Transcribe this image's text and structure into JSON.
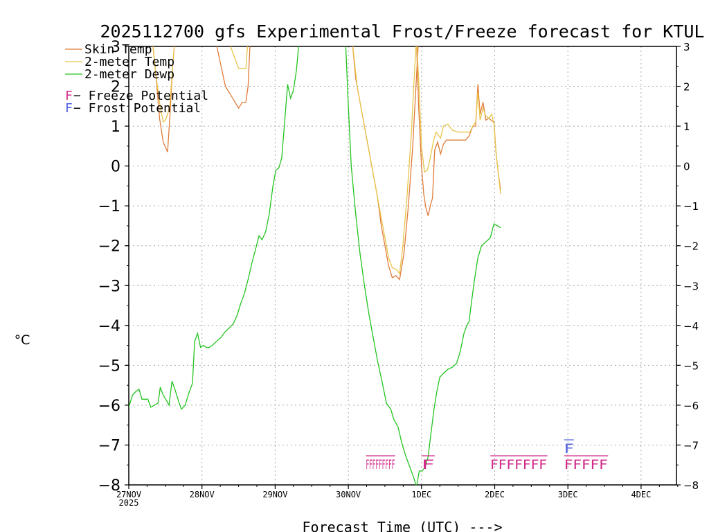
{
  "chart_data": {
    "type": "line",
    "title": "2025112700 gfs Experimental Frost/Freeze forecast for KTUL",
    "xlabel": "Forecast Time (UTC) --->",
    "ylabel": "°C",
    "ylim": [
      -8,
      3
    ],
    "xlim": [
      0,
      7.5
    ],
    "grid": true,
    "yticks": [
      -8,
      -7,
      -6,
      -5,
      -4,
      -3,
      -2,
      -1,
      0,
      1,
      2,
      3
    ],
    "ytick_labels": [
      "−8",
      "−7",
      "−6",
      "−5",
      "−4",
      "−3",
      "−2",
      "−1",
      "0",
      "1",
      "2",
      "3"
    ],
    "ytick_labels_right": [
      "−8",
      "−7",
      "−6",
      "−5",
      "−4",
      "−3",
      "−2",
      "−1",
      "0",
      "1",
      "2",
      "3"
    ],
    "xticks": [
      {
        "x": 0,
        "label": "27NOV",
        "sublabel": "2025"
      },
      {
        "x": 1,
        "label": "28NOV"
      },
      {
        "x": 2,
        "label": "29NOV"
      },
      {
        "x": 3,
        "label": "30NOV"
      },
      {
        "x": 4,
        "label": "1DEC"
      },
      {
        "x": 5,
        "label": "2DEC"
      },
      {
        "x": 6,
        "label": "3DEC"
      },
      {
        "x": 7,
        "label": "4DEC"
      }
    ],
    "legend": {
      "position": "top-left",
      "entries": [
        {
          "label": "Skin Temp",
          "color": "#e07b39"
        },
        {
          "label": "2-meter Temp",
          "color": "#e8c54a"
        },
        {
          "label": "2-meter Dewp",
          "color": "#22c41f"
        }
      ],
      "flag_entries": [
        {
          "symbol": "F",
          "label": " − Freeze Potential",
          "color": "#d12b8a"
        },
        {
          "symbol": "F",
          "label": " − Frost Potential",
          "color": "#4f5fe0"
        }
      ]
    },
    "series": [
      {
        "name": "Skin Temp",
        "color": "#e07b39",
        "segments": [
          [
            [
              0.32,
              3.2
            ],
            [
              0.375,
              2.2
            ],
            [
              0.42,
              1.2
            ],
            [
              0.47,
              0.6
            ],
            [
              0.53,
              0.35
            ],
            [
              0.56,
              1.2
            ],
            [
              0.6,
              2.5
            ],
            [
              0.63,
              3.2
            ]
          ],
          [
            [
              1.18,
              3.2
            ],
            [
              1.25,
              2.6
            ],
            [
              1.32,
              2.0
            ],
            [
              1.42,
              1.7
            ],
            [
              1.5,
              1.45
            ],
            [
              1.55,
              1.6
            ],
            [
              1.6,
              1.6
            ],
            [
              1.63,
              2.0
            ],
            [
              1.66,
              3.2
            ]
          ],
          [
            [
              3.05,
              3.2
            ],
            [
              3.1,
              2.2
            ],
            [
              3.2,
              1.2
            ],
            [
              3.3,
              0.2
            ],
            [
              3.4,
              -0.8
            ],
            [
              3.45,
              -1.5
            ],
            [
              3.5,
              -2.0
            ],
            [
              3.55,
              -2.5
            ],
            [
              3.6,
              -2.8
            ],
            [
              3.65,
              -2.75
            ],
            [
              3.7,
              -2.85
            ],
            [
              3.76,
              -2.2
            ],
            [
              3.82,
              -1.0
            ],
            [
              3.88,
              0.5
            ],
            [
              3.93,
              2.2
            ],
            [
              3.96,
              3.2
            ]
          ],
          [
            [
              3.93,
              3.2
            ],
            [
              3.96,
              1.5
            ],
            [
              4.0,
              0.0
            ],
            [
              4.03,
              -0.7
            ],
            [
              4.06,
              -1.05
            ],
            [
              4.09,
              -1.25
            ],
            [
              4.12,
              -1.0
            ],
            [
              4.15,
              -0.8
            ],
            [
              4.18,
              0.4
            ],
            [
              4.22,
              0.6
            ],
            [
              4.26,
              0.3
            ],
            [
              4.3,
              0.55
            ],
            [
              4.34,
              0.65
            ],
            [
              4.4,
              0.65
            ],
            [
              4.5,
              0.65
            ],
            [
              4.6,
              0.65
            ],
            [
              4.65,
              0.75
            ],
            [
              4.7,
              1.0
            ],
            [
              4.74,
              1.0
            ],
            [
              4.77,
              2.05
            ],
            [
              4.8,
              1.3
            ],
            [
              4.84,
              1.6
            ],
            [
              4.88,
              1.15
            ],
            [
              4.92,
              1.2
            ],
            [
              4.95,
              1.15
            ],
            [
              4.99,
              1.1
            ],
            [
              5.02,
              0.3
            ],
            [
              5.05,
              -0.2
            ],
            [
              5.08,
              -0.6
            ]
          ]
        ]
      },
      {
        "name": "2-meter Temp",
        "color": "#e8c54a",
        "segments": [
          [
            [
              0.32,
              3.2
            ],
            [
              0.37,
              2.3
            ],
            [
              0.42,
              1.6
            ],
            [
              0.47,
              1.1
            ],
            [
              0.5,
              1.15
            ],
            [
              0.53,
              1.3
            ],
            [
              0.56,
              1.5
            ],
            [
              0.6,
              2.5
            ],
            [
              0.63,
              3.2
            ]
          ],
          [
            [
              1.35,
              3.2
            ],
            [
              1.42,
              2.85
            ],
            [
              1.5,
              2.45
            ],
            [
              1.56,
              2.45
            ],
            [
              1.6,
              2.45
            ],
            [
              1.63,
              3.2
            ]
          ],
          [
            [
              3.05,
              3.2
            ],
            [
              3.12,
              2.0
            ],
            [
              3.22,
              1.0
            ],
            [
              3.32,
              0.0
            ],
            [
              3.42,
              -1.0
            ],
            [
              3.5,
              -1.8
            ],
            [
              3.55,
              -2.3
            ],
            [
              3.6,
              -2.55
            ],
            [
              3.66,
              -2.6
            ],
            [
              3.7,
              -2.7
            ],
            [
              3.74,
              -2.1
            ],
            [
              3.8,
              -0.8
            ],
            [
              3.86,
              0.8
            ],
            [
              3.9,
              2.2
            ],
            [
              3.93,
              3.2
            ]
          ],
          [
            [
              3.93,
              3.2
            ],
            [
              3.96,
              2.2
            ],
            [
              4.0,
              0.5
            ],
            [
              4.04,
              -0.15
            ],
            [
              4.08,
              -0.1
            ],
            [
              4.12,
              0.2
            ],
            [
              4.16,
              0.6
            ],
            [
              4.2,
              0.85
            ],
            [
              4.26,
              0.7
            ],
            [
              4.3,
              1.0
            ],
            [
              4.36,
              1.05
            ],
            [
              4.42,
              0.9
            ],
            [
              4.5,
              0.85
            ],
            [
              4.6,
              0.85
            ],
            [
              4.66,
              0.85
            ],
            [
              4.7,
              1.0
            ],
            [
              4.74,
              1.1
            ],
            [
              4.77,
              1.85
            ],
            [
              4.8,
              1.15
            ],
            [
              4.84,
              1.45
            ],
            [
              4.88,
              1.25
            ],
            [
              4.92,
              1.2
            ],
            [
              4.96,
              1.3
            ],
            [
              4.99,
              1.05
            ],
            [
              5.02,
              0.3
            ],
            [
              5.05,
              -0.2
            ],
            [
              5.08,
              -0.7
            ]
          ]
        ]
      },
      {
        "name": "2-meter Dewp",
        "color": "#22c41f",
        "segments": [
          [
            [
              0.0,
              -6.05
            ],
            [
              0.05,
              -5.75
            ],
            [
              0.1,
              -5.65
            ],
            [
              0.14,
              -5.6
            ],
            [
              0.18,
              -5.85
            ],
            [
              0.22,
              -5.85
            ],
            [
              0.26,
              -5.85
            ],
            [
              0.3,
              -6.05
            ],
            [
              0.35,
              -6.0
            ],
            [
              0.4,
              -5.95
            ],
            [
              0.43,
              -5.55
            ],
            [
              0.47,
              -5.75
            ],
            [
              0.52,
              -5.9
            ],
            [
              0.55,
              -6.0
            ],
            [
              0.59,
              -5.4
            ],
            [
              0.63,
              -5.6
            ],
            [
              0.68,
              -5.9
            ],
            [
              0.72,
              -6.1
            ],
            [
              0.77,
              -6.0
            ],
            [
              0.82,
              -5.7
            ],
            [
              0.87,
              -5.45
            ],
            [
              0.9,
              -4.4
            ],
            [
              0.94,
              -4.2
            ],
            [
              0.98,
              -4.55
            ],
            [
              1.02,
              -4.5
            ],
            [
              1.06,
              -4.55
            ],
            [
              1.1,
              -4.55
            ],
            [
              1.14,
              -4.5
            ],
            [
              1.2,
              -4.4
            ],
            [
              1.26,
              -4.3
            ],
            [
              1.32,
              -4.15
            ],
            [
              1.38,
              -4.05
            ],
            [
              1.43,
              -3.95
            ],
            [
              1.48,
              -3.75
            ],
            [
              1.53,
              -3.45
            ],
            [
              1.58,
              -3.2
            ],
            [
              1.63,
              -2.85
            ],
            [
              1.68,
              -2.45
            ],
            [
              1.73,
              -2.1
            ],
            [
              1.78,
              -1.75
            ],
            [
              1.82,
              -1.85
            ],
            [
              1.87,
              -1.65
            ],
            [
              1.92,
              -1.2
            ],
            [
              1.97,
              -0.5
            ],
            [
              2.01,
              -0.1
            ],
            [
              2.05,
              -0.05
            ],
            [
              2.09,
              0.2
            ],
            [
              2.13,
              1.1
            ],
            [
              2.17,
              2.05
            ],
            [
              2.21,
              1.7
            ],
            [
              2.25,
              1.9
            ],
            [
              2.29,
              2.4
            ],
            [
              2.33,
              3.2
            ]
          ],
          [
            [
              2.96,
              3.2
            ],
            [
              3.0,
              1.5
            ],
            [
              3.04,
              0.0
            ],
            [
              3.1,
              -1.2
            ],
            [
              3.16,
              -2.2
            ],
            [
              3.22,
              -3.0
            ],
            [
              3.28,
              -3.7
            ],
            [
              3.34,
              -4.3
            ],
            [
              3.4,
              -4.9
            ],
            [
              3.46,
              -5.4
            ],
            [
              3.52,
              -5.95
            ],
            [
              3.58,
              -6.1
            ],
            [
              3.62,
              -6.35
            ],
            [
              3.68,
              -6.55
            ],
            [
              3.73,
              -6.95
            ],
            [
              3.78,
              -7.25
            ],
            [
              3.84,
              -7.55
            ],
            [
              3.9,
              -7.85
            ],
            [
              3.93,
              -8.05
            ],
            [
              3.97,
              -7.65
            ],
            [
              4.01,
              -7.65
            ],
            [
              4.05,
              -7.55
            ],
            [
              4.09,
              -7.3
            ],
            [
              4.13,
              -6.7
            ],
            [
              4.17,
              -6.1
            ],
            [
              4.21,
              -5.65
            ],
            [
              4.25,
              -5.3
            ],
            [
              4.3,
              -5.2
            ],
            [
              4.36,
              -5.1
            ],
            [
              4.42,
              -5.05
            ],
            [
              4.48,
              -4.95
            ],
            [
              4.53,
              -4.65
            ],
            [
              4.58,
              -4.2
            ],
            [
              4.62,
              -4.0
            ],
            [
              4.65,
              -3.9
            ],
            [
              4.68,
              -3.45
            ],
            [
              4.72,
              -2.9
            ],
            [
              4.77,
              -2.3
            ],
            [
              4.82,
              -2.0
            ],
            [
              4.88,
              -1.9
            ],
            [
              4.94,
              -1.8
            ],
            [
              4.99,
              -1.45
            ],
            [
              5.04,
              -1.5
            ],
            [
              5.08,
              -1.55
            ]
          ]
        ]
      }
    ],
    "flags": [
      {
        "type": "freeze",
        "color": "#d12b8a",
        "y": -7.6,
        "x_start": 3.24,
        "x_end": 3.64,
        "text": "FFFFFFFFF"
      },
      {
        "type": "freeze",
        "color": "#d12b8a",
        "y": -7.6,
        "x_start": 4.0,
        "x_end": 4.18,
        "text": "F"
      },
      {
        "type": "freeze",
        "color": "#d12b8a",
        "y": -7.6,
        "x_start": 4.94,
        "x_end": 5.72,
        "text": "FFFFFFF"
      },
      {
        "type": "freeze",
        "color": "#d12b8a",
        "y": -7.6,
        "x_start": 5.95,
        "x_end": 6.55,
        "text": "FFFFF"
      },
      {
        "type": "frost",
        "color": "#4f5fe0",
        "y": -7.2,
        "x_start": 5.95,
        "x_end": 6.08,
        "text": "F"
      }
    ]
  }
}
